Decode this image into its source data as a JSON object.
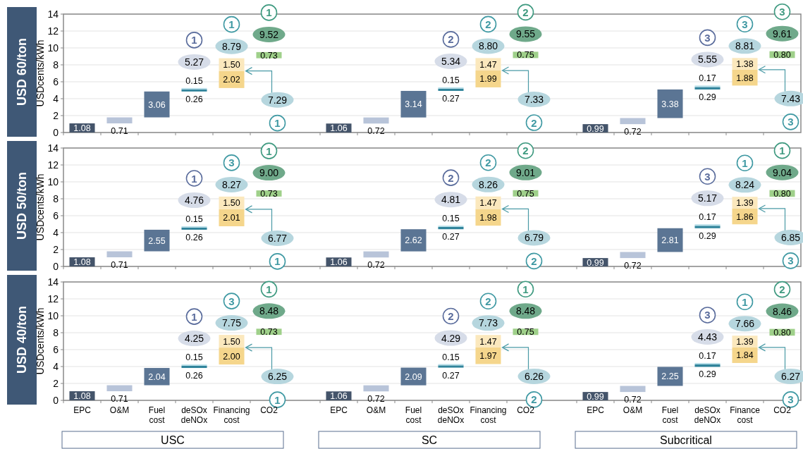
{
  "chart_data": [
    {
      "type": "bar",
      "title": "USD 60/ton",
      "ylabel": "USDcents/kWh",
      "categories": [
        null,
        null,
        null,
        null,
        null,
        null,
        null,
        null,
        null,
        null,
        null,
        null,
        null,
        null,
        null,
        null,
        null,
        null
      ],
      "series": [
        {
          "values": [
            1.08,
            0.71,
            3.06,
            0.26,
            2.02,
            0.73,
            1.06,
            0.72,
            3.14,
            0.27,
            1.99,
            0.75,
            0.99,
            0.72,
            3.38,
            0.29,
            1.88,
            0.8
          ],
          "base": [
            0,
            1.08,
            1.79,
            4.85,
            5.26,
            8.78,
            0,
            1.06,
            1.78,
            4.92,
            5.34,
            8.8,
            0,
            0.99,
            1.71,
            5.09,
            5.55,
            8.81
          ],
          "value_labels": [
            "1.08",
            "0.71",
            "3.06",
            "0.26",
            "2.02",
            "0.73",
            "1.06",
            "0.72",
            "3.14",
            "0.27",
            "1.99",
            "0.75",
            "0.99",
            "0.72",
            "3.38",
            "0.29",
            "1.88",
            "0.80"
          ],
          "colors": [
            "#44546a",
            "#b8c4d9",
            "#5b7594",
            "#31849b",
            "#f5d68c",
            "#9fd08a",
            "#44546a",
            "#b8c4d9",
            "#5b7594",
            "#31849b",
            "#f5d68c",
            "#9fd08a",
            "#44546a",
            "#b8c4d9",
            "#5b7594",
            "#31849b",
            "#f5d68c",
            "#9fd08a"
          ]
        },
        {
          "values": [
            null,
            null,
            null,
            0.15,
            1.5,
            null,
            null,
            null,
            null,
            0.15,
            1.47,
            null,
            null,
            null,
            null,
            0.17,
            1.38,
            null
          ],
          "base": [
            null,
            null,
            null,
            5.11,
            7.28,
            null,
            null,
            null,
            null,
            5.19,
            7.33,
            null,
            null,
            null,
            null,
            5.38,
            7.43,
            null
          ],
          "value_labels": [
            null,
            null,
            null,
            "0.15",
            "1.50",
            null,
            null,
            null,
            null,
            "0.15",
            "1.47",
            null,
            null,
            null,
            null,
            "0.17",
            "1.38",
            null
          ],
          "colors": [
            null,
            null,
            null,
            "#b7dee8",
            "#fbe8bd",
            null,
            null,
            null,
            null,
            "#b7dee8",
            "#fbe8bd",
            null,
            null,
            null,
            null,
            "#b7dee8",
            "#fbe8bd",
            null
          ]
        }
      ],
      "ylim": [
        0,
        14
      ],
      "yticks": [
        0,
        2,
        4,
        6,
        8,
        10,
        12,
        14
      ],
      "grid": "y",
      "tick_labels": "y",
      "annotations": [
        "5.27",
        "1",
        "8.79",
        "1",
        "9.52",
        "1",
        "7.29",
        "1",
        "5.34",
        "2",
        "8.80",
        "2",
        "9.55",
        "2",
        "7.33",
        "2",
        "5.55",
        "3",
        "8.81",
        "3",
        "9.61",
        "3",
        "7.43",
        "3"
      ]
    },
    {
      "type": "bar",
      "title": "USD 50/ton",
      "ylabel": "USDcents/kWh",
      "categories": [
        null,
        null,
        null,
        null,
        null,
        null,
        null,
        null,
        null,
        null,
        null,
        null,
        null,
        null,
        null,
        null,
        null,
        null
      ],
      "series": [
        {
          "values": [
            1.08,
            0.71,
            2.55,
            0.26,
            2.01,
            0.73,
            1.06,
            0.72,
            2.62,
            0.27,
            1.98,
            0.75,
            0.99,
            0.72,
            2.81,
            0.29,
            1.86,
            0.8
          ],
          "base": [
            0,
            1.08,
            1.79,
            4.34,
            4.75,
            8.26,
            0,
            1.06,
            1.78,
            4.4,
            4.82,
            8.27,
            0,
            0.99,
            1.71,
            4.52,
            4.98,
            8.23
          ],
          "value_labels": [
            "1.08",
            "0.71",
            "2.55",
            "0.26",
            "2.01",
            "0.73",
            "1.06",
            "0.72",
            "2.62",
            "0.27",
            "1.98",
            "0.75",
            "0.99",
            "0.72",
            "2.81",
            "0.29",
            "1.86",
            "0.80"
          ],
          "colors": [
            "#44546a",
            "#b8c4d9",
            "#5b7594",
            "#31849b",
            "#f5d68c",
            "#9fd08a",
            "#44546a",
            "#b8c4d9",
            "#5b7594",
            "#31849b",
            "#f5d68c",
            "#9fd08a",
            "#44546a",
            "#b8c4d9",
            "#5b7594",
            "#31849b",
            "#f5d68c",
            "#9fd08a"
          ]
        },
        {
          "values": [
            null,
            null,
            null,
            0.15,
            1.5,
            null,
            null,
            null,
            null,
            0.15,
            1.47,
            null,
            null,
            null,
            null,
            0.17,
            1.39,
            null
          ],
          "base": [
            null,
            null,
            null,
            4.6,
            6.76,
            null,
            null,
            null,
            null,
            4.67,
            6.8,
            null,
            null,
            null,
            null,
            4.81,
            6.84,
            null
          ],
          "value_labels": [
            null,
            null,
            null,
            "0.15",
            "1.50",
            null,
            null,
            null,
            null,
            "0.15",
            "1.47",
            null,
            null,
            null,
            null,
            "0.17",
            "1.39",
            null
          ],
          "colors": [
            null,
            null,
            null,
            "#b7dee8",
            "#fbe8bd",
            null,
            null,
            null,
            null,
            "#b7dee8",
            "#fbe8bd",
            null,
            null,
            null,
            null,
            "#b7dee8",
            "#fbe8bd",
            null
          ]
        }
      ],
      "ylim": [
        0,
        14
      ],
      "yticks": [
        0,
        2,
        4,
        6,
        8,
        10,
        12,
        14
      ],
      "grid": "y",
      "tick_labels": "y",
      "annotations": [
        "4.76",
        "1",
        "8.27",
        "3",
        "9.00",
        "1",
        "6.77",
        "1",
        "4.81",
        "2",
        "8.26",
        "2",
        "9.01",
        "2",
        "6.79",
        "2",
        "5.17",
        "3",
        "8.24",
        "1",
        "9.04",
        "1",
        "6.85",
        "3"
      ]
    },
    {
      "type": "bar",
      "title": "USD 40/ton",
      "ylabel": "USDcents/kWh",
      "categories": [
        "EPC",
        "O&M",
        "Fuel cost",
        "deSOx deNOx",
        "Financing cost",
        "CO2",
        "EPC",
        "O&M",
        "Fuel cost",
        "deSOx deNOx",
        "Financing cost",
        "CO2",
        "EPC",
        "O&M",
        "Fuel cost",
        "deSOx deNOx",
        "Finance cost",
        "CO2"
      ],
      "series": [
        {
          "values": [
            1.08,
            0.71,
            2.04,
            0.26,
            2.0,
            0.73,
            1.06,
            0.72,
            2.09,
            0.27,
            1.97,
            0.75,
            0.99,
            0.72,
            2.25,
            0.29,
            1.84,
            0.8
          ],
          "base": [
            0,
            1.08,
            1.79,
            3.83,
            4.24,
            7.74,
            0,
            1.06,
            1.78,
            3.87,
            4.29,
            7.73,
            0,
            0.99,
            1.71,
            3.96,
            4.42,
            7.65
          ],
          "value_labels": [
            "1.08",
            "0.71",
            "2.04",
            "0.26",
            "2.00",
            "0.73",
            "1.06",
            "0.72",
            "2.09",
            "0.27",
            "1.97",
            "0.75",
            "0.99",
            "0.72",
            "2.25",
            "0.29",
            "1.84",
            "0.80"
          ],
          "colors": [
            "#44546a",
            "#b8c4d9",
            "#5b7594",
            "#31849b",
            "#f5d68c",
            "#9fd08a",
            "#44546a",
            "#b8c4d9",
            "#5b7594",
            "#31849b",
            "#f5d68c",
            "#9fd08a",
            "#44546a",
            "#b8c4d9",
            "#5b7594",
            "#31849b",
            "#f5d68c",
            "#9fd08a"
          ]
        },
        {
          "values": [
            null,
            null,
            null,
            0.15,
            1.5,
            null,
            null,
            null,
            null,
            0.15,
            1.47,
            null,
            null,
            null,
            null,
            0.17,
            1.39,
            null
          ],
          "base": [
            null,
            null,
            null,
            4.09,
            6.24,
            null,
            null,
            null,
            null,
            4.14,
            6.26,
            null,
            null,
            null,
            null,
            4.25,
            6.26,
            null
          ],
          "value_labels": [
            null,
            null,
            null,
            "0.15",
            "1.50",
            null,
            null,
            null,
            null,
            "0.15",
            "1.47",
            null,
            null,
            null,
            null,
            "0.17",
            "1.39",
            null
          ],
          "colors": [
            null,
            null,
            null,
            "#b7dee8",
            "#fbe8bd",
            null,
            null,
            null,
            null,
            "#b7dee8",
            "#fbe8bd",
            null,
            null,
            null,
            null,
            "#b7dee8",
            "#fbe8bd",
            null
          ]
        }
      ],
      "ylim": [
        0,
        14
      ],
      "yticks": [
        0,
        2,
        4,
        6,
        8,
        10,
        12,
        14
      ],
      "grid": "y",
      "annotations": [
        "4.25",
        "1",
        "7.75",
        "3",
        "8.48",
        "1",
        "6.25",
        "1",
        "4.29",
        "2",
        "7.73",
        "2",
        "8.48",
        "1",
        "6.26",
        "2",
        "4.43",
        "3",
        "7.66",
        "1",
        "8.46",
        "2",
        "6.27",
        "3",
        "USC",
        "SC",
        "Subcritical"
      ]
    }
  ]
}
